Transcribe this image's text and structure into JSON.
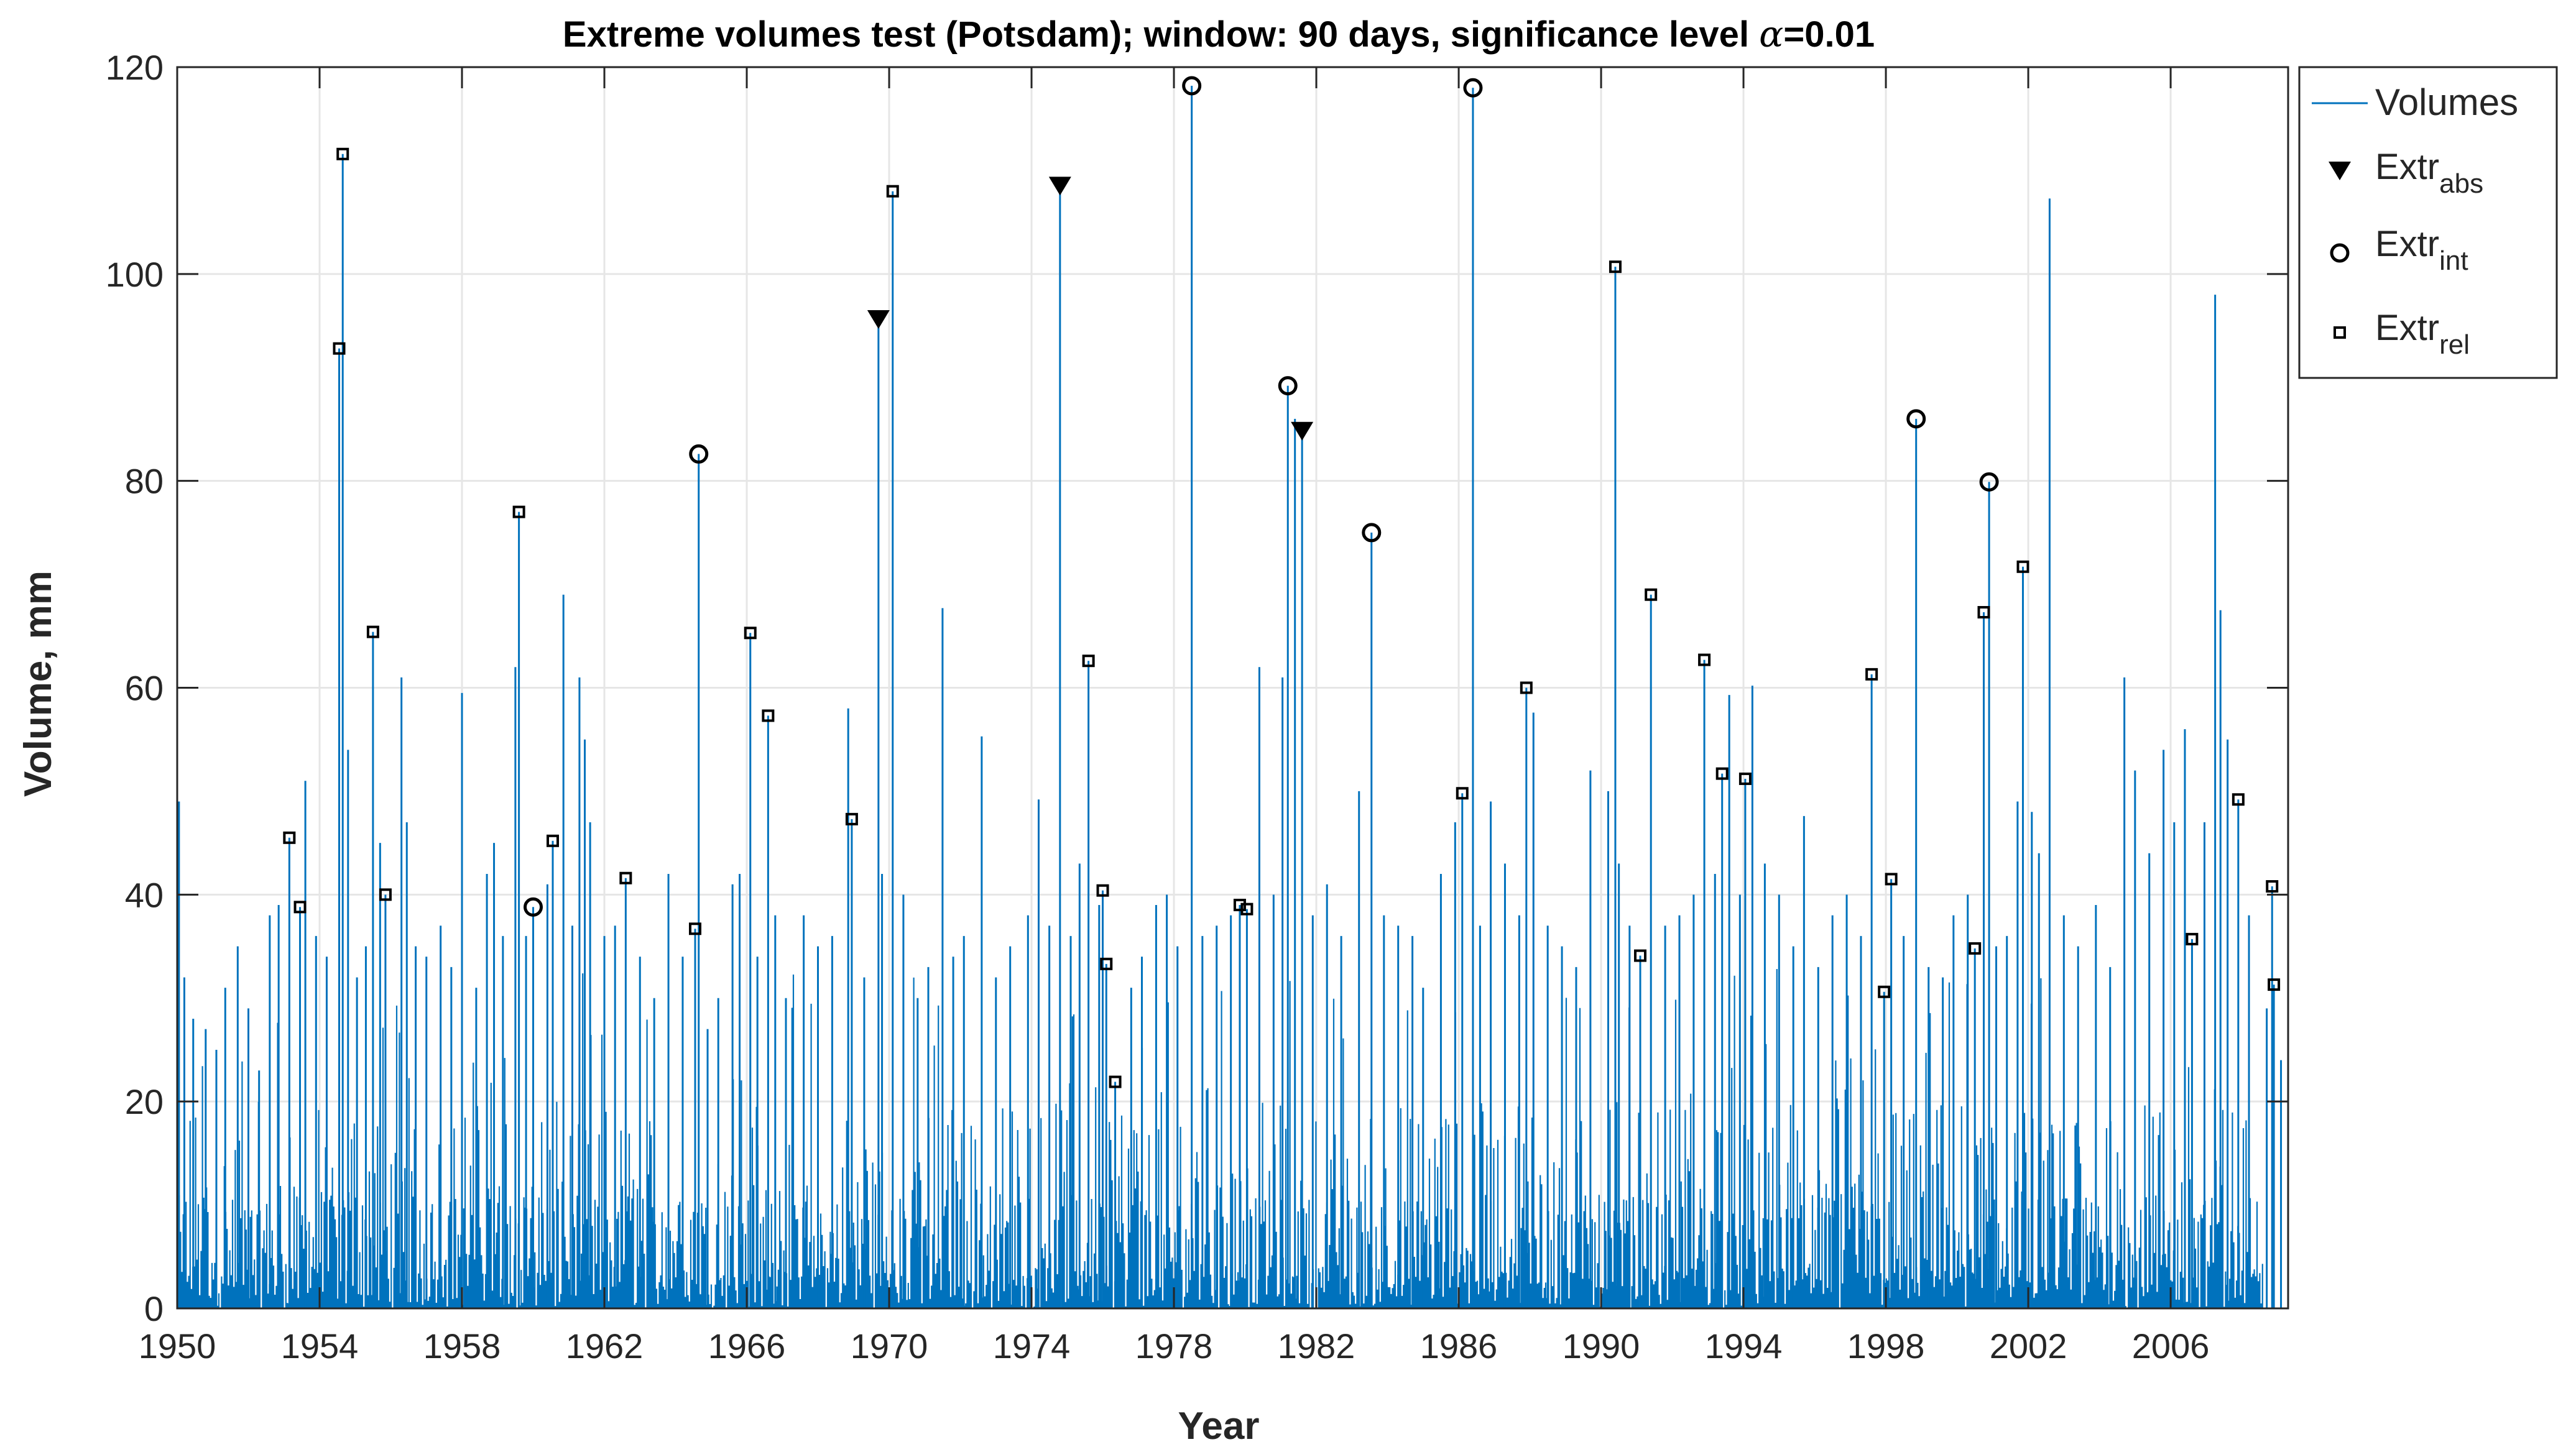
{
  "chart_data": {
    "type": "line",
    "title_prefix": "Extreme volumes test (Potsdam); window: 90 days, significance level ",
    "title_alpha": "α",
    "title_suffix": "=0.01",
    "xlabel": "Year",
    "ylabel": "Volume, mm",
    "xlim": [
      1950,
      2009.3
    ],
    "ylim": [
      0,
      120
    ],
    "xticks": [
      "1950",
      "1954",
      "1958",
      "1962",
      "1966",
      "1970",
      "1974",
      "1978",
      "1982",
      "1986",
      "1990",
      "1994",
      "1998",
      "2002",
      "2006"
    ],
    "yticks": [
      "0",
      "20",
      "40",
      "60",
      "80",
      "100",
      "120"
    ],
    "grid": true,
    "legend_position": "outside-top-right",
    "colors": {
      "volumes": "#0072BD",
      "markers": "#000000",
      "grid": "#e6e6e6",
      "axes": "#262626"
    },
    "legend": [
      {
        "id": "volumes",
        "base": "Volumes",
        "sub": ""
      },
      {
        "id": "abs",
        "base": "Extr",
        "sub": "abs"
      },
      {
        "id": "int",
        "base": "Extr",
        "sub": "int"
      },
      {
        "id": "rel",
        "base": "Extr",
        "sub": "rel"
      }
    ],
    "volume_peaks": [
      [
        1950.05,
        49
      ],
      [
        1950.2,
        32
      ],
      [
        1950.45,
        28
      ],
      [
        1950.8,
        27
      ],
      [
        1951.1,
        25
      ],
      [
        1951.35,
        31
      ],
      [
        1951.7,
        35
      ],
      [
        1952.0,
        29
      ],
      [
        1952.3,
        23
      ],
      [
        1952.6,
        38
      ],
      [
        1952.85,
        39
      ],
      [
        1953.15,
        45.5
      ],
      [
        1953.45,
        38.8
      ],
      [
        1953.6,
        51
      ],
      [
        1953.9,
        36
      ],
      [
        1954.2,
        34
      ],
      [
        1954.55,
        92.8
      ],
      [
        1954.65,
        111.6
      ],
      [
        1954.8,
        54
      ],
      [
        1955.05,
        32
      ],
      [
        1955.3,
        35
      ],
      [
        1955.5,
        65.4
      ],
      [
        1955.7,
        45
      ],
      [
        1955.85,
        40
      ],
      [
        1956.3,
        61
      ],
      [
        1956.45,
        47
      ],
      [
        1956.7,
        35
      ],
      [
        1957.0,
        34
      ],
      [
        1957.4,
        37
      ],
      [
        1957.7,
        33
      ],
      [
        1958.0,
        59.5
      ],
      [
        1958.4,
        31
      ],
      [
        1958.7,
        42
      ],
      [
        1958.9,
        45
      ],
      [
        1959.15,
        36
      ],
      [
        1959.5,
        62
      ],
      [
        1959.6,
        77
      ],
      [
        1959.8,
        36
      ],
      [
        1960.0,
        38.8
      ],
      [
        1960.4,
        41
      ],
      [
        1960.55,
        45.2
      ],
      [
        1960.85,
        69
      ],
      [
        1961.1,
        37
      ],
      [
        1961.3,
        61
      ],
      [
        1961.45,
        55
      ],
      [
        1961.6,
        47
      ],
      [
        1962.0,
        36
      ],
      [
        1962.3,
        37
      ],
      [
        1962.6,
        41.6
      ],
      [
        1963.0,
        34
      ],
      [
        1963.4,
        30
      ],
      [
        1963.8,
        42
      ],
      [
        1964.2,
        34
      ],
      [
        1964.55,
        36.7
      ],
      [
        1964.65,
        82.6
      ],
      [
        1964.9,
        27
      ],
      [
        1965.2,
        30
      ],
      [
        1965.6,
        41
      ],
      [
        1965.8,
        42
      ],
      [
        1966.1,
        65.3
      ],
      [
        1966.3,
        34
      ],
      [
        1966.6,
        57.3
      ],
      [
        1966.8,
        38
      ],
      [
        1967.1,
        30
      ],
      [
        1967.6,
        38
      ],
      [
        1968.0,
        35
      ],
      [
        1968.4,
        36
      ],
      [
        1968.85,
        58
      ],
      [
        1968.95,
        47.3
      ],
      [
        1969.3,
        32
      ],
      [
        1969.7,
        95.6
      ],
      [
        1969.8,
        42
      ],
      [
        1970.1,
        108
      ],
      [
        1970.4,
        40
      ],
      [
        1970.8,
        30
      ],
      [
        1971.1,
        33
      ],
      [
        1971.5,
        67.7
      ],
      [
        1971.8,
        34
      ],
      [
        1972.1,
        36
      ],
      [
        1972.6,
        55.3
      ],
      [
        1973.0,
        32
      ],
      [
        1973.4,
        35
      ],
      [
        1973.9,
        38
      ],
      [
        1974.2,
        49.2
      ],
      [
        1974.5,
        37
      ],
      [
        1974.8,
        108.5
      ],
      [
        1975.1,
        36
      ],
      [
        1975.35,
        43
      ],
      [
        1975.6,
        62.6
      ],
      [
        1975.9,
        39
      ],
      [
        1976.0,
        40.4
      ],
      [
        1976.1,
        33.3
      ],
      [
        1976.35,
        21.9
      ],
      [
        1976.8,
        31
      ],
      [
        1977.1,
        34
      ],
      [
        1977.5,
        39
      ],
      [
        1977.8,
        40
      ],
      [
        1978.1,
        35
      ],
      [
        1978.5,
        118.2
      ],
      [
        1978.8,
        36
      ],
      [
        1979.2,
        37
      ],
      [
        1979.6,
        38
      ],
      [
        1979.85,
        39
      ],
      [
        1980.05,
        38.6
      ],
      [
        1980.4,
        62
      ],
      [
        1980.8,
        40
      ],
      [
        1981.05,
        61
      ],
      [
        1981.2,
        89.2
      ],
      [
        1981.4,
        86
      ],
      [
        1981.6,
        84.8
      ],
      [
        1981.9,
        38
      ],
      [
        1982.3,
        41
      ],
      [
        1982.7,
        36
      ],
      [
        1983.2,
        50
      ],
      [
        1983.55,
        75
      ],
      [
        1983.9,
        38
      ],
      [
        1984.3,
        37
      ],
      [
        1984.7,
        36
      ],
      [
        1985.0,
        31
      ],
      [
        1985.5,
        42
      ],
      [
        1985.9,
        47
      ],
      [
        1986.1,
        49.8
      ],
      [
        1986.4,
        118
      ],
      [
        1986.6,
        37
      ],
      [
        1986.9,
        49
      ],
      [
        1987.3,
        43
      ],
      [
        1987.7,
        38
      ],
      [
        1987.9,
        60
      ],
      [
        1988.1,
        57.6
      ],
      [
        1988.5,
        37
      ],
      [
        1988.9,
        35
      ],
      [
        1989.3,
        33
      ],
      [
        1989.7,
        52
      ],
      [
        1990.2,
        50
      ],
      [
        1990.4,
        100.7
      ],
      [
        1990.5,
        43
      ],
      [
        1990.8,
        37
      ],
      [
        1991.1,
        34.1
      ],
      [
        1991.4,
        69
      ],
      [
        1991.8,
        37
      ],
      [
        1992.2,
        38
      ],
      [
        1992.6,
        40
      ],
      [
        1992.9,
        62.7
      ],
      [
        1993.2,
        42
      ],
      [
        1993.4,
        51.7
      ],
      [
        1993.6,
        59.3
      ],
      [
        1993.9,
        40
      ],
      [
        1994.05,
        51.2
      ],
      [
        1994.25,
        60.2
      ],
      [
        1994.6,
        43
      ],
      [
        1995.0,
        40
      ],
      [
        1995.4,
        35
      ],
      [
        1995.7,
        47.6
      ],
      [
        1996.1,
        33
      ],
      [
        1996.5,
        38
      ],
      [
        1996.9,
        40
      ],
      [
        1997.3,
        36
      ],
      [
        1997.6,
        61.3
      ],
      [
        1997.95,
        30.6
      ],
      [
        1998.15,
        41.5
      ],
      [
        1998.5,
        36
      ],
      [
        1998.85,
        86
      ],
      [
        1999.2,
        33
      ],
      [
        1999.6,
        32
      ],
      [
        1999.9,
        38
      ],
      [
        2000.3,
        40
      ],
      [
        2000.5,
        34.8
      ],
      [
        2000.75,
        67.3
      ],
      [
        2000.9,
        79.9
      ],
      [
        2001.1,
        35
      ],
      [
        2001.4,
        36
      ],
      [
        2001.7,
        49
      ],
      [
        2001.85,
        71.7
      ],
      [
        2002.1,
        48
      ],
      [
        2002.3,
        44
      ],
      [
        2002.6,
        107.3
      ],
      [
        2003.0,
        38
      ],
      [
        2003.4,
        35
      ],
      [
        2003.9,
        39
      ],
      [
        2004.3,
        33
      ],
      [
        2004.7,
        61
      ],
      [
        2005.0,
        52
      ],
      [
        2005.4,
        44
      ],
      [
        2005.8,
        54
      ],
      [
        2006.1,
        47
      ],
      [
        2006.4,
        56
      ],
      [
        2006.6,
        35.7
      ],
      [
        2006.95,
        47
      ],
      [
        2007.25,
        98
      ],
      [
        2007.4,
        67.5
      ],
      [
        2007.6,
        55
      ],
      [
        2007.9,
        49.2
      ],
      [
        2008.2,
        38
      ],
      [
        2008.7,
        29
      ],
      [
        2008.85,
        40.8
      ],
      [
        2008.9,
        31.3
      ],
      [
        2009.1,
        24
      ]
    ],
    "extr_abs": [
      [
        1969.7,
        95.6
      ],
      [
        1974.8,
        108.5
      ],
      [
        1981.6,
        84.8
      ]
    ],
    "extr_int": [
      [
        1960.0,
        38.8
      ],
      [
        1964.65,
        82.6
      ],
      [
        1978.5,
        118.2
      ],
      [
        1981.2,
        89.2
      ],
      [
        1983.55,
        75
      ],
      [
        1986.4,
        118
      ],
      [
        1998.85,
        86
      ],
      [
        2000.9,
        79.9
      ]
    ],
    "extr_rel": [
      [
        1953.15,
        45.5
      ],
      [
        1953.45,
        38.8
      ],
      [
        1954.55,
        92.8
      ],
      [
        1954.65,
        111.6
      ],
      [
        1955.5,
        65.4
      ],
      [
        1955.85,
        40
      ],
      [
        1959.6,
        77
      ],
      [
        1960.55,
        45.2
      ],
      [
        1962.6,
        41.6
      ],
      [
        1964.55,
        36.7
      ],
      [
        1966.1,
        65.3
      ],
      [
        1966.6,
        57.3
      ],
      [
        1968.95,
        47.3
      ],
      [
        1970.1,
        108
      ],
      [
        1975.6,
        62.6
      ],
      [
        1976.0,
        40.4
      ],
      [
        1976.1,
        33.3
      ],
      [
        1976.35,
        21.9
      ],
      [
        1979.85,
        39
      ],
      [
        1980.05,
        38.6
      ],
      [
        1986.1,
        49.8
      ],
      [
        1987.9,
        60
      ],
      [
        1990.4,
        100.7
      ],
      [
        1991.1,
        34.1
      ],
      [
        1991.4,
        69
      ],
      [
        1992.9,
        62.7
      ],
      [
        1993.4,
        51.7
      ],
      [
        1994.05,
        51.2
      ],
      [
        1997.6,
        61.3
      ],
      [
        1997.95,
        30.6
      ],
      [
        1998.15,
        41.5
      ],
      [
        2000.5,
        34.8
      ],
      [
        2000.75,
        67.3
      ],
      [
        2001.85,
        71.7
      ],
      [
        2006.6,
        35.7
      ],
      [
        2007.9,
        49.2
      ],
      [
        2008.85,
        40.8
      ],
      [
        2008.9,
        31.3
      ]
    ]
  }
}
